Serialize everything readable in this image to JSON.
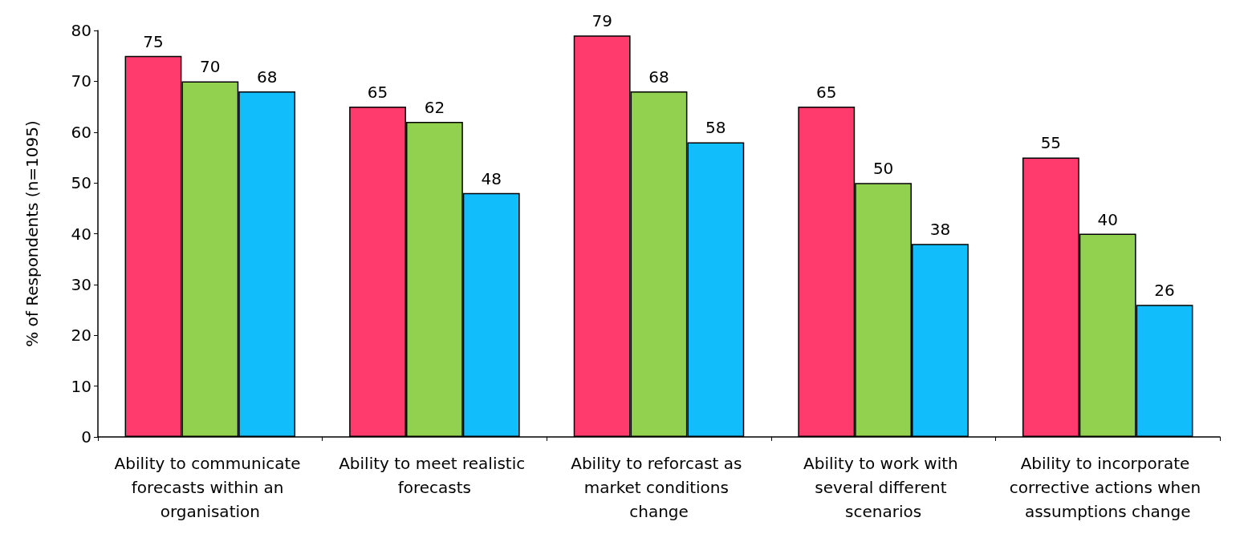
{
  "chart_data": {
    "type": "bar",
    "ylabel": "% of Respondents (n=1095)",
    "categories": [
      "Ability to communicate forecasts within an organisation",
      "Ability to meet realistic forecasts",
      "Ability to reforcast as market conditions change",
      "Ability to work with several different scenarios",
      "Ability to incorporate corrective actions when assumptions change"
    ],
    "series": [
      {
        "color": "#ff3b6e",
        "values": [
          75,
          65,
          79,
          65,
          55
        ]
      },
      {
        "color": "#92d050",
        "values": [
          70,
          62,
          68,
          50,
          40
        ]
      },
      {
        "color": "#12bdfc",
        "values": [
          68,
          48,
          58,
          38,
          26
        ]
      }
    ],
    "ylim": [
      0,
      80
    ],
    "yticks": [
      0,
      10,
      20,
      30,
      40,
      50,
      60,
      70,
      80
    ],
    "grid": false,
    "data_labels": true
  }
}
